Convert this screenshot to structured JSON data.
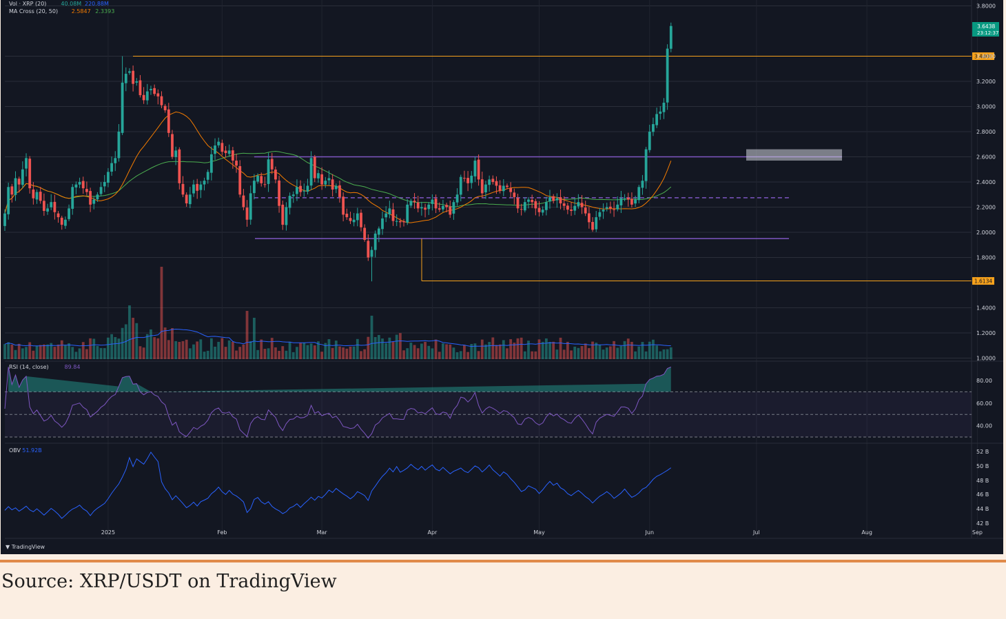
{
  "caption": "Source: XRP/USDT on TradingView",
  "chart_data": {
    "type": "candlestick",
    "symbol": "XRP/USDT",
    "price_axis": {
      "ticks": [
        "3.8000",
        "3.4000",
        "3.2000",
        "3.0000",
        "2.8000",
        "2.6000",
        "2.4000",
        "2.2000",
        "2.0000",
        "1.8000",
        "1.4000",
        "1.2000",
        "1.0000"
      ],
      "range": [
        1.0,
        3.8
      ]
    },
    "time_axis": {
      "ticks": [
        "2025",
        "Feb",
        "Mar",
        "Apr",
        "May",
        "Jun",
        "Jul",
        "Aug",
        "Sep"
      ]
    },
    "last_price": {
      "value": "3.6438",
      "countdown": "23:12:37"
    },
    "levels": [
      {
        "label": "3.4000",
        "value": 3.4,
        "color": "#f7a21c"
      },
      {
        "label": "1.6134",
        "value": 1.6134,
        "color": "#f7a21c"
      }
    ],
    "range_lines": {
      "upper": 2.6,
      "middle": 2.275,
      "lower": 1.95,
      "color": "#7e57c2"
    },
    "closes": [
      2.15,
      2.36,
      2.3,
      2.43,
      2.38,
      2.5,
      2.59,
      2.35,
      2.27,
      2.32,
      2.25,
      2.17,
      2.19,
      2.24,
      2.16,
      2.12,
      2.06,
      2.1,
      2.19,
      2.36,
      2.38,
      2.4,
      2.35,
      2.32,
      2.22,
      2.26,
      2.3,
      2.36,
      2.4,
      2.48,
      2.55,
      2.59,
      2.8,
      3.19,
      3.26,
      3.28,
      3.18,
      3.2,
      3.09,
      3.05,
      3.12,
      3.14,
      3.1,
      3.08,
      3.01,
      2.97,
      2.79,
      2.6,
      2.65,
      2.39,
      2.3,
      2.23,
      2.3,
      2.38,
      2.33,
      2.38,
      2.41,
      2.48,
      2.62,
      2.69,
      2.72,
      2.64,
      2.63,
      2.65,
      2.57,
      2.53,
      2.3,
      2.2,
      2.1,
      2.31,
      2.41,
      2.45,
      2.39,
      2.38,
      2.58,
      2.5,
      2.42,
      2.21,
      2.06,
      2.2,
      2.29,
      2.3,
      2.36,
      2.32,
      2.33,
      2.37,
      2.59,
      2.43,
      2.47,
      2.38,
      2.41,
      2.43,
      2.34,
      2.37,
      2.28,
      2.14,
      2.12,
      2.09,
      2.1,
      2.15,
      2.04,
      1.94,
      1.8,
      1.86,
      1.99,
      2.03,
      2.11,
      2.15,
      2.19,
      2.09,
      2.09,
      2.08,
      2.08,
      2.22,
      2.25,
      2.24,
      2.19,
      2.2,
      2.18,
      2.22,
      2.26,
      2.19,
      2.18,
      2.21,
      2.2,
      2.14,
      2.24,
      2.3,
      2.44,
      2.43,
      2.39,
      2.45,
      2.57,
      2.42,
      2.31,
      2.38,
      2.42,
      2.4,
      2.37,
      2.33,
      2.37,
      2.36,
      2.32,
      2.28,
      2.19,
      2.18,
      2.24,
      2.26,
      2.24,
      2.19,
      2.16,
      2.18,
      2.24,
      2.28,
      2.25,
      2.27,
      2.23,
      2.21,
      2.18,
      2.17,
      2.21,
      2.24,
      2.2,
      2.15,
      2.08,
      2.02,
      2.12,
      2.16,
      2.18,
      2.2,
      2.19,
      2.18,
      2.22,
      2.27,
      2.27,
      2.26,
      2.22,
      2.26,
      2.36,
      2.41,
      2.66,
      2.8,
      2.86,
      2.94,
      2.96,
      3.03,
      3.46,
      3.64
    ],
    "rsi": {
      "label": "RSI (14, close)",
      "value": "89.84",
      "ticks": [
        "80.00",
        "60.00",
        "40.00"
      ],
      "overbought": 70,
      "oversold": 30,
      "middle": 50
    },
    "obv": {
      "label": "OBV",
      "value": "51.92B",
      "ticks": [
        "52 B",
        "50 B",
        "48 B",
        "46 B",
        "44 B",
        "42 B"
      ]
    },
    "volume": {
      "label": "Vol · XRP (20)",
      "values": [
        "40.08M",
        "220.88M"
      ]
    },
    "ma_cross": {
      "label": "MA Cross (20, 50)",
      "fast": "2.5847",
      "slow": "2.3393"
    },
    "colors": {
      "up": "#26a69a",
      "down": "#ef5350",
      "ma_fast": "#f57c00",
      "ma_slow": "#4caf50",
      "vol_ma": "#2962ff",
      "rsi_line": "#7e57c2",
      "obv_line": "#2962ff",
      "background": "#131722"
    },
    "watermark": "TradingView"
  }
}
